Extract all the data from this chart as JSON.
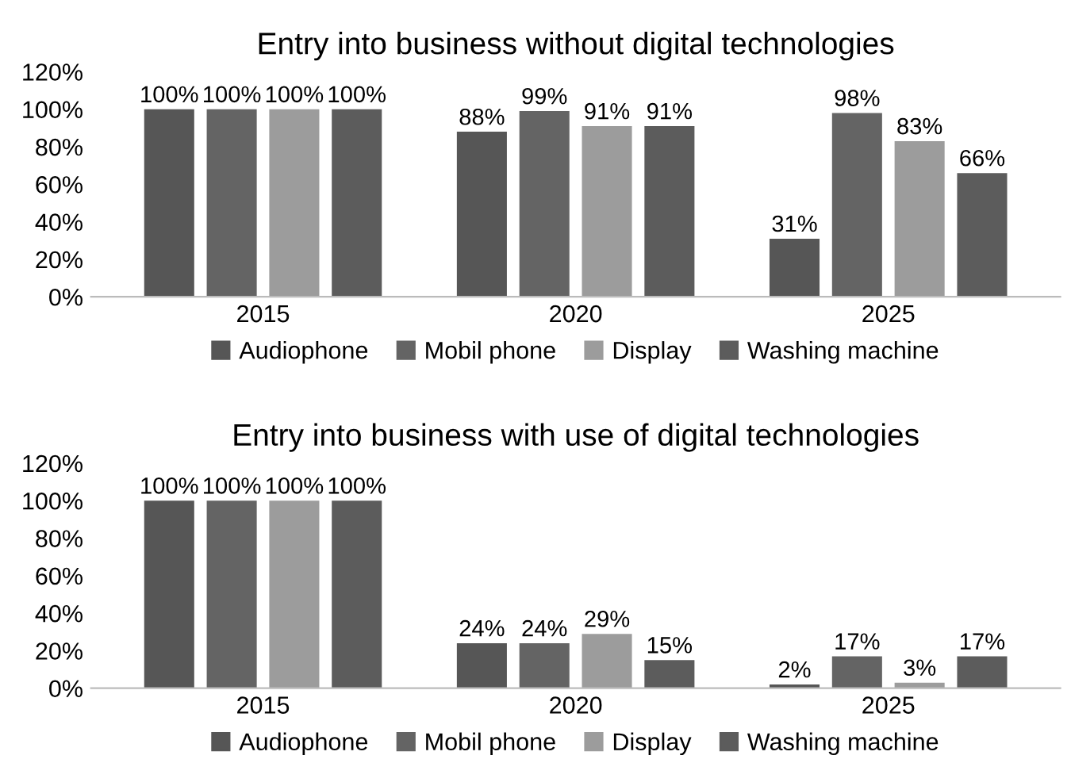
{
  "chart_data": [
    {
      "type": "bar",
      "title": "Entry into business without digital technologies",
      "categories": [
        "2015",
        "2020",
        "2025"
      ],
      "series": [
        {
          "name": "Audiophone",
          "color": "#565656",
          "values": [
            100,
            88,
            31
          ],
          "value_labels": [
            "100%",
            "88%",
            "31%"
          ]
        },
        {
          "name": "Mobil phone",
          "color": "#646464",
          "values": [
            100,
            99,
            98
          ],
          "value_labels": [
            "100%",
            "99%",
            "98%"
          ]
        },
        {
          "name": "Display",
          "color": "#9c9c9c",
          "values": [
            100,
            91,
            83
          ],
          "value_labels": [
            "100%",
            "91%",
            "83%"
          ]
        },
        {
          "name": "Washing machine",
          "color": "#5c5c5c",
          "values": [
            100,
            91,
            66
          ],
          "value_labels": [
            "100%",
            "91%",
            "66%"
          ]
        }
      ],
      "ylim": [
        0,
        120
      ],
      "yticks": [
        {
          "value": 0,
          "label": "0%"
        },
        {
          "value": 20,
          "label": "20%"
        },
        {
          "value": 40,
          "label": "40%"
        },
        {
          "value": 60,
          "label": "60%"
        },
        {
          "value": 80,
          "label": "80%"
        },
        {
          "value": 100,
          "label": "100%"
        },
        {
          "value": 120,
          "label": "120%"
        }
      ],
      "legend": "bottom",
      "grid": false
    },
    {
      "type": "bar",
      "title": "Entry into business with use of digital technologies",
      "categories": [
        "2015",
        "2020",
        "2025"
      ],
      "series": [
        {
          "name": "Audiophone",
          "color": "#565656",
          "values": [
            100,
            24,
            2
          ],
          "value_labels": [
            "100%",
            "24%",
            "2%"
          ]
        },
        {
          "name": "Mobil phone",
          "color": "#646464",
          "values": [
            100,
            24,
            17
          ],
          "value_labels": [
            "100%",
            "24%",
            "17%"
          ]
        },
        {
          "name": "Display",
          "color": "#9c9c9c",
          "values": [
            100,
            29,
            3
          ],
          "value_labels": [
            "100%",
            "29%",
            "3%"
          ]
        },
        {
          "name": "Washing machine",
          "color": "#5c5c5c",
          "values": [
            100,
            15,
            17
          ],
          "value_labels": [
            "100%",
            "15%",
            "17%"
          ]
        }
      ],
      "ylim": [
        0,
        120
      ],
      "yticks": [
        {
          "value": 0,
          "label": "0%"
        },
        {
          "value": 20,
          "label": "20%"
        },
        {
          "value": 40,
          "label": "40%"
        },
        {
          "value": 60,
          "label": "60%"
        },
        {
          "value": 80,
          "label": "80%"
        },
        {
          "value": 100,
          "label": "100%"
        },
        {
          "value": 120,
          "label": "120%"
        }
      ],
      "legend": "bottom",
      "grid": false
    }
  ]
}
